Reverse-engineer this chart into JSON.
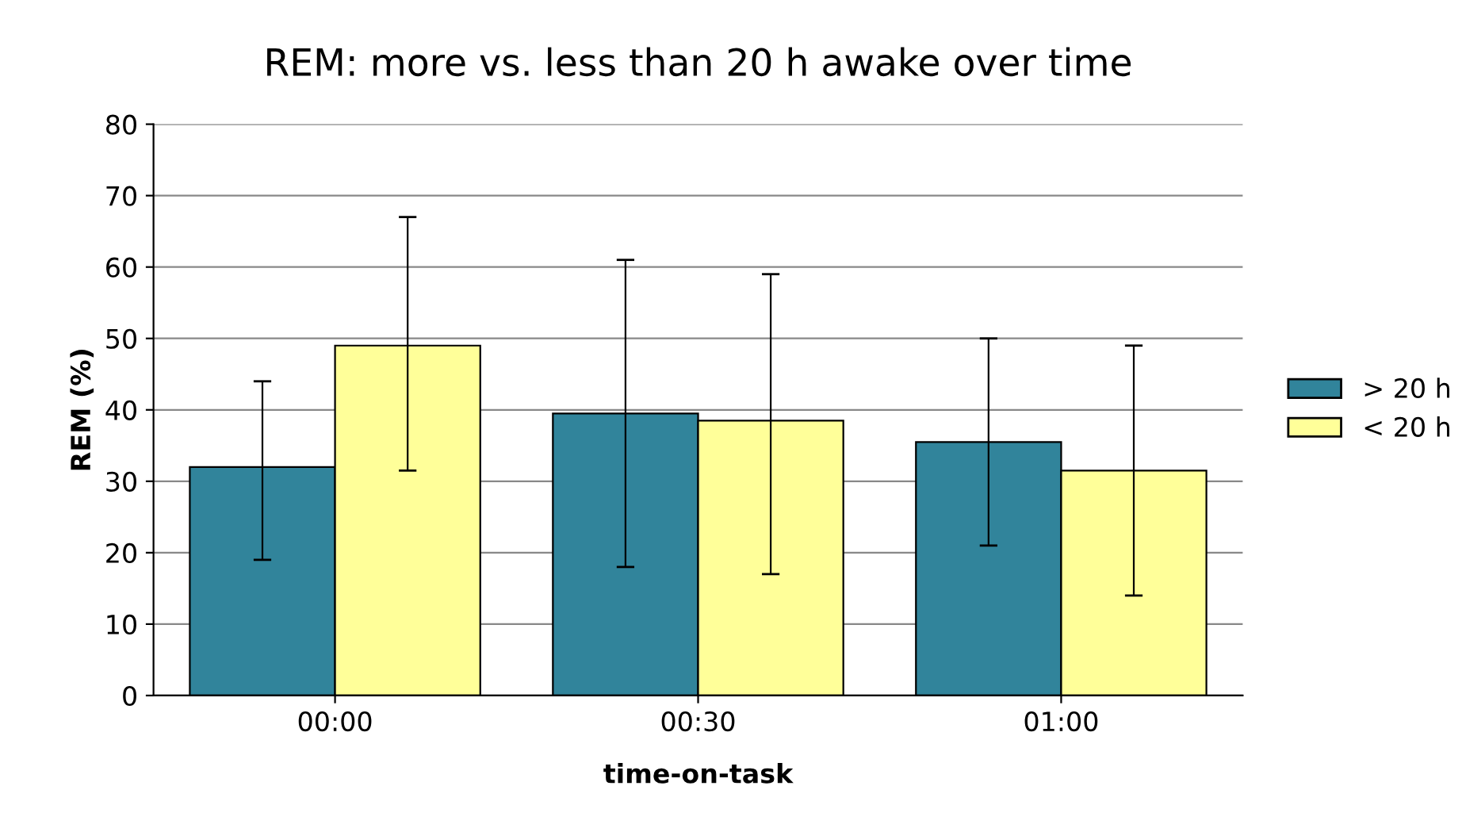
{
  "chart_data": {
    "type": "bar",
    "title": "REM: more vs. less than 20 h awake over time",
    "xlabel": "time-on-task",
    "ylabel": "REM (%)",
    "categories": [
      "00:00",
      "00:30",
      "01:00"
    ],
    "series": [
      {
        "name": "> 20 h",
        "color": "#31849b",
        "values": [
          32,
          39.5,
          35.5
        ],
        "errors": [
          [
            19,
            44
          ],
          [
            18,
            61
          ],
          [
            21,
            50
          ]
        ]
      },
      {
        "name": "< 20 h",
        "color": "#ffff99",
        "values": [
          49,
          38.5,
          31.5
        ],
        "errors": [
          [
            31.5,
            67
          ],
          [
            17,
            59
          ],
          [
            14,
            49
          ]
        ]
      }
    ],
    "ylim": [
      0,
      80
    ],
    "yticks": [
      0,
      10,
      20,
      30,
      40,
      50,
      60,
      70,
      80
    ],
    "grid": "y",
    "legend": "right"
  }
}
